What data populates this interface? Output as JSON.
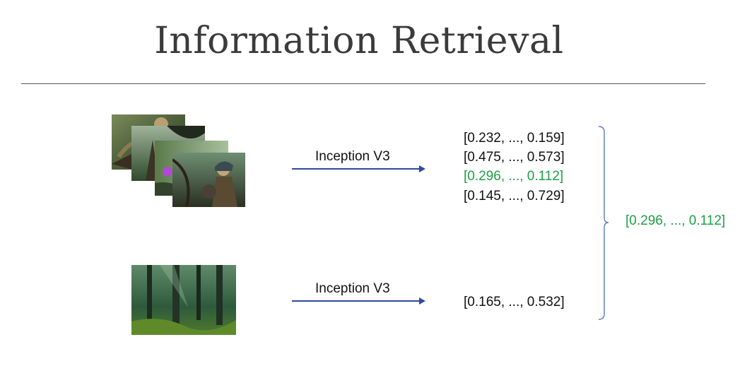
{
  "title": "Information Retrieval",
  "arrows": [
    {
      "label": "Inception V3"
    },
    {
      "label": "Inception V3"
    }
  ],
  "vectors": [
    {
      "text": "[0.232, ..., 0.159]",
      "highlight": false
    },
    {
      "text": "[0.475, ..., 0.573]",
      "highlight": false
    },
    {
      "text": "[0.296, ..., 0.112]",
      "highlight": true
    },
    {
      "text": "[0.145, ..., 0.729]",
      "highlight": false
    }
  ],
  "query_vector": {
    "text": "[0.165, ..., 0.532]"
  },
  "result_vector": {
    "text": "[0.296, ..., 0.112]"
  },
  "colors": {
    "highlight": "#1e9e45",
    "arrow": "#2f4a9e",
    "brace": "#5b7bc4"
  },
  "images": [
    {
      "icon": "fantasy-art-thumbnail"
    },
    {
      "icon": "fantasy-art-thumbnail"
    },
    {
      "icon": "fantasy-art-thumbnail"
    },
    {
      "icon": "warrior-art-thumbnail"
    },
    {
      "icon": "forest-photo-thumbnail"
    }
  ]
}
